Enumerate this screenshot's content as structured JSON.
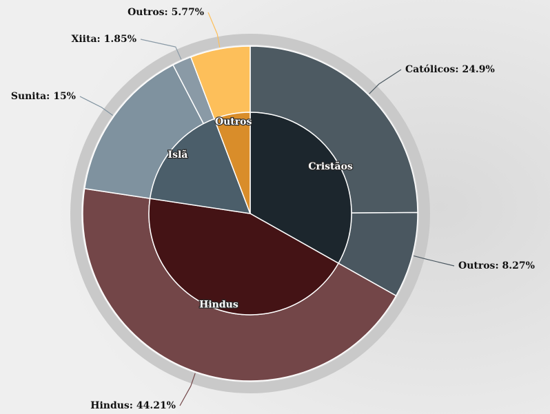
{
  "chart_data": {
    "type": "sunburst",
    "inner": {
      "labels": [
        "Cristãos",
        "Hindus",
        "Islã",
        "Outros"
      ],
      "values": [
        33.17,
        44.21,
        16.85,
        5.77
      ],
      "colors": [
        "#1c262d",
        "#441315",
        "#4b5e6a",
        "#d98d2a"
      ]
    },
    "outer": {
      "labels": [
        "Católicos",
        "Outros",
        "Hindus",
        "Sunita",
        "Xiita",
        "Outros"
      ],
      "values": [
        24.9,
        8.27,
        44.21,
        15,
        1.85,
        5.77
      ],
      "value_labels": [
        "24.9%",
        "8.27%",
        "44.21%",
        "15%",
        "1.85%",
        "5.77%"
      ],
      "colors": [
        "#4d5a62",
        "#4a5760",
        "#734648",
        "#7f929f",
        "#8a9aa6",
        "#fdbf5a"
      ]
    }
  }
}
